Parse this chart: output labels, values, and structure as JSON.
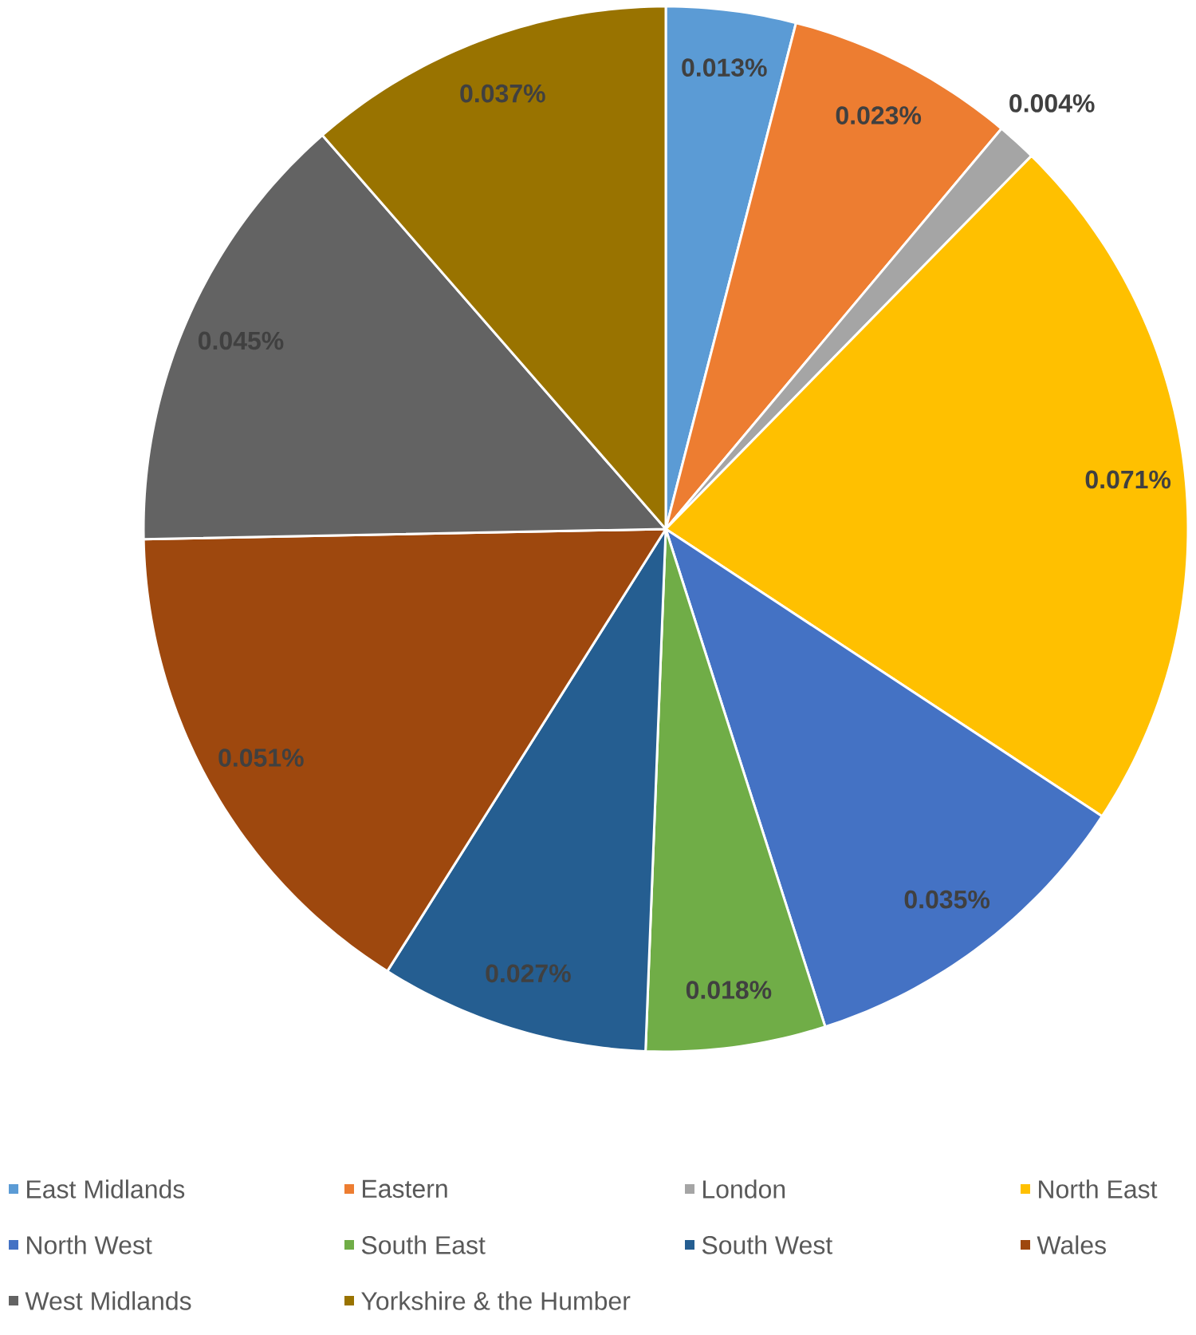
{
  "chart_data": {
    "type": "pie",
    "categories": [
      "East Midlands",
      "Eastern",
      "London",
      "North East",
      "North West",
      "South East",
      "South West",
      "Wales",
      "West Midlands",
      "Yorkshire & the Humber"
    ],
    "values": [
      0.013,
      0.023,
      0.004,
      0.071,
      0.035,
      0.018,
      0.027,
      0.051,
      0.045,
      0.037
    ],
    "value_labels": [
      "0.013%",
      "0.023%",
      "0.004%",
      "0.071%",
      "0.035%",
      "0.018%",
      "0.027%",
      "0.051%",
      "0.045%",
      "0.037%"
    ],
    "colors": [
      "#5b9bd5",
      "#ed7d31",
      "#a5a5a5",
      "#ffc000",
      "#4472c4",
      "#70ad47",
      "#255e91",
      "#9e480e",
      "#636363",
      "#997300"
    ],
    "legend": "bottom"
  }
}
